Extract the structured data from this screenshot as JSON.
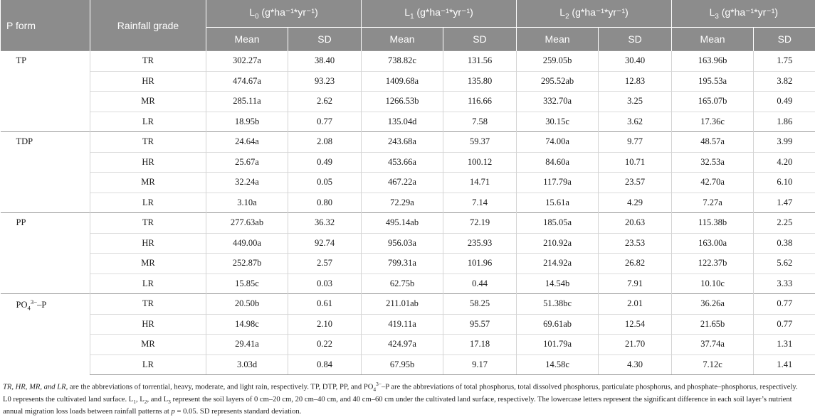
{
  "header": {
    "p_form": "P form",
    "rainfall_grade": "Rainfall grade",
    "groups": [
      {
        "base": "L",
        "sub": "0",
        "unit": " (g*ha⁻¹*yr⁻¹)"
      },
      {
        "base": "L",
        "sub": "1",
        "unit": " (g*ha⁻¹*yr⁻¹)"
      },
      {
        "base": "L",
        "sub": "2",
        "unit": " (g*ha⁻¹*yr⁻¹)"
      },
      {
        "base": "L",
        "sub": "3",
        "unit": " (g*ha⁻¹*yr⁻¹)"
      }
    ],
    "mean": "Mean",
    "sd": "SD"
  },
  "groups": [
    {
      "pform": {
        "main": "TP",
        "sup": "",
        "tail": ""
      },
      "rows": [
        {
          "grade": "TR",
          "vals": [
            "302.27a",
            "38.40",
            "738.82c",
            "131.56",
            "259.05b",
            "30.40",
            "163.96b",
            "1.75"
          ]
        },
        {
          "grade": "HR",
          "vals": [
            "474.67a",
            "93.23",
            "1409.68a",
            "135.80",
            "295.52ab",
            "12.83",
            "195.53a",
            "3.82"
          ]
        },
        {
          "grade": "MR",
          "vals": [
            "285.11a",
            "2.62",
            "1266.53b",
            "116.66",
            "332.70a",
            "3.25",
            "165.07b",
            "0.49"
          ]
        },
        {
          "grade": "LR",
          "vals": [
            "18.95b",
            "0.77",
            "135.04d",
            "7.58",
            "30.15c",
            "3.62",
            "17.36c",
            "1.86"
          ]
        }
      ]
    },
    {
      "pform": {
        "main": "TDP",
        "sup": "",
        "tail": ""
      },
      "rows": [
        {
          "grade": "TR",
          "vals": [
            "24.64a",
            "2.08",
            "243.68a",
            "59.37",
            "74.00a",
            "9.77",
            "48.57a",
            "3.99"
          ]
        },
        {
          "grade": "HR",
          "vals": [
            "25.67a",
            "0.49",
            "453.66a",
            "100.12",
            "84.60a",
            "10.71",
            "32.53a",
            "4.20"
          ]
        },
        {
          "grade": "MR",
          "vals": [
            "32.24a",
            "0.05",
            "467.22a",
            "14.71",
            "117.79a",
            "23.57",
            "42.70a",
            "6.10"
          ]
        },
        {
          "grade": "LR",
          "vals": [
            "3.10a",
            "0.80",
            "72.29a",
            "7.14",
            "15.61a",
            "4.29",
            "7.27a",
            "1.47"
          ]
        }
      ]
    },
    {
      "pform": {
        "main": "PP",
        "sup": "",
        "tail": ""
      },
      "rows": [
        {
          "grade": "TR",
          "vals": [
            "277.63ab",
            "36.32",
            "495.14ab",
            "72.19",
            "185.05a",
            "20.63",
            "115.38b",
            "2.25"
          ]
        },
        {
          "grade": "HR",
          "vals": [
            "449.00a",
            "92.74",
            "956.03a",
            "235.93",
            "210.92a",
            "23.53",
            "163.00a",
            "0.38"
          ]
        },
        {
          "grade": "MR",
          "vals": [
            "252.87b",
            "2.57",
            "799.31a",
            "101.96",
            "214.92a",
            "26.82",
            "122.37b",
            "5.62"
          ]
        },
        {
          "grade": "LR",
          "vals": [
            "15.85c",
            "0.03",
            "62.75b",
            "0.44",
            "14.54b",
            "7.91",
            "10.10c",
            "3.33"
          ]
        }
      ]
    },
    {
      "pform": {
        "main": "PO",
        "sub": "4",
        "sup": "3−",
        "tail": "–P"
      },
      "rows": [
        {
          "grade": "TR",
          "vals": [
            "20.50b",
            "0.61",
            "211.01ab",
            "58.25",
            "51.38bc",
            "2.01",
            "36.26a",
            "0.77"
          ]
        },
        {
          "grade": "HR",
          "vals": [
            "14.98c",
            "2.10",
            "419.11a",
            "95.57",
            "69.61ab",
            "12.54",
            "21.65b",
            "0.77"
          ]
        },
        {
          "grade": "MR",
          "vals": [
            "29.41a",
            "0.22",
            "424.97a",
            "17.18",
            "101.79a",
            "21.70",
            "37.74a",
            "1.31"
          ]
        },
        {
          "grade": "LR",
          "vals": [
            "3.03d",
            "0.84",
            "67.95b",
            "9.17",
            "14.58c",
            "4.30",
            "7.12c",
            "1.41"
          ]
        }
      ]
    }
  ],
  "notes": {
    "line1_italic": "TR, HR, MR, and LR,",
    "line1_rest": " are the abbreviations of torrential, heavy, moderate, and light rain, respectively. TP, DTP, PP, and PO",
    "line1_sub": "4",
    "line1_sup": "3−",
    "line1_tail": "–P are the abbreviations of total phosphorus, total dissolved phosphorus, particulate phosphorus, and phosphate–phosphorus, respectively.",
    "line2_a": "L0 represents the cultivated land surface. L",
    "line2_s1": "1",
    "line2_b": ", L",
    "line2_s2": "2",
    "line2_c": ", and L",
    "line2_s3": "3",
    "line2_d": " represent the soil layers of 0 cm–20 cm, 20 cm–40 cm, and 40 cm–60 cm under the cultivated land surface, respectively. The lowercase letters represent the significant difference in each soil layer’s nutrient annual migration loss loads between rainfall patterns at ",
    "line2_p": "p",
    "line2_e": " = 0.05. SD represents standard deviation."
  }
}
